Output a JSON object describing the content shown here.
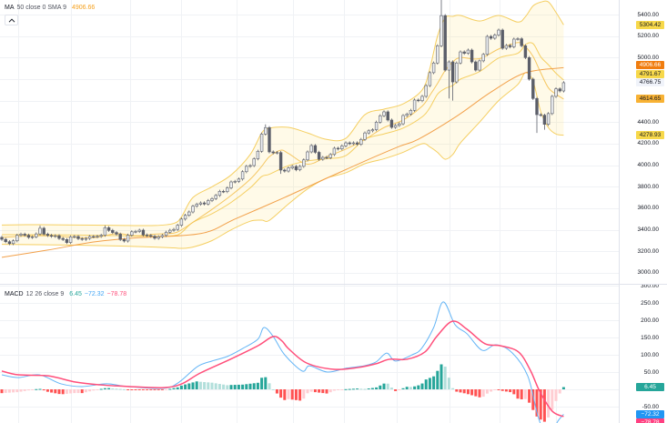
{
  "price_pane": {
    "legend": {
      "name": "MA",
      "params": "50 close 0 SMA 9",
      "value": "4906.66",
      "value_color": "#f5a11f"
    },
    "collapse_button": {
      "icon": "chevron-up-icon"
    }
  },
  "macd_pane": {
    "legend": {
      "name": "MACD",
      "params": "12 26 close 9",
      "values": [
        {
          "text": "6.45",
          "color": "#26a69a"
        },
        {
          "text": "−72.32",
          "color": "#42a5f5"
        },
        {
          "text": "−78.78",
          "color": "#ff4f7b"
        }
      ]
    }
  },
  "price_axis": {
    "tick_labels": [
      {
        "value": 5400,
        "text": "5400.00"
      },
      {
        "value": 5200,
        "text": "5200.00"
      },
      {
        "value": 5000,
        "text": "5000.00"
      },
      {
        "value": 4400,
        "text": "4400.00"
      },
      {
        "value": 4200,
        "text": "4200.00"
      },
      {
        "value": 4000,
        "text": "4000.00"
      },
      {
        "value": 3800,
        "text": "3800.00"
      },
      {
        "value": 3600,
        "text": "3600.00"
      },
      {
        "value": 3400,
        "text": "3400.00"
      },
      {
        "value": 3200,
        "text": "3200.00"
      },
      {
        "value": 3000,
        "text": "3000.00"
      }
    ],
    "value_labels": [
      {
        "value": 5304.42,
        "text": "5304.42",
        "series": "bb-upper",
        "bg": "#f7d84a",
        "fg": "#131722"
      },
      {
        "value": 4906.66,
        "text": "4906.66",
        "series": "ma50",
        "bg": "#f07d10",
        "fg": "#ffffff"
      },
      {
        "value": 4791.67,
        "text": "4791.67",
        "series": "bb-basis",
        "bg": "#f7d84a",
        "fg": "#131722"
      },
      {
        "value": 4766.75,
        "text": "4766.75",
        "series": "last-price",
        "bg": "#f0f3fa",
        "fg": "#131722"
      },
      {
        "value": 4614.65,
        "text": "4614.65",
        "series": "sma9",
        "bg": "#f8b234",
        "fg": "#131722"
      },
      {
        "value": 4278.93,
        "text": "4278.93",
        "series": "bb-lower",
        "bg": "#f7d84a",
        "fg": "#131722"
      }
    ]
  },
  "macd_axis": {
    "tick_labels": [
      {
        "value": 300,
        "text": "300.00"
      },
      {
        "value": 250,
        "text": "250.00"
      },
      {
        "value": 200,
        "text": "200.00"
      },
      {
        "value": 150,
        "text": "150.00"
      },
      {
        "value": 100,
        "text": "100.00"
      },
      {
        "value": 50,
        "text": "50.00"
      },
      {
        "value": -50,
        "text": "-50.00"
      }
    ],
    "value_labels": [
      {
        "value": 6.45,
        "text": "6.45",
        "series": "histogram",
        "bg": "#26a69a",
        "fg": "#ffffff"
      },
      {
        "value": -72.32,
        "text": "−72.32",
        "series": "macd",
        "bg": "#2196f3",
        "fg": "#ffffff"
      },
      {
        "value": -78.78,
        "text": "−78.78",
        "series": "signal",
        "bg": "#ff4081",
        "fg": "#ffffff"
      }
    ]
  },
  "chart_data": {
    "type": "candlestick",
    "title": "",
    "grid": true,
    "panes": [
      "price",
      "macd"
    ],
    "last_price": 4766.75,
    "y_axis_price": {
      "range": [
        2960,
        5535
      ],
      "ticks": [
        5400,
        5200,
        5000,
        4800,
        4600,
        4400,
        4200,
        4000,
        3800,
        3600,
        3400,
        3200,
        3000
      ]
    },
    "y_axis_macd": {
      "ticks": [
        300,
        250,
        200,
        150,
        100,
        50,
        0,
        -50
      ]
    },
    "colors": {
      "up_fill": "#eceef1",
      "down_fill": "#5b5e69",
      "candle_border": "#5d606b",
      "bb_line": "#f5cf62",
      "bb_fill": "rgba(255,226,120,0.17)",
      "sma9": "#f3bd4a",
      "ma50": "#f2a14b",
      "macd_line": "#64b5f6",
      "signal_line": "#ff4f7b",
      "hist_up_strong": "#26a69a",
      "hist_up_weak": "#b2dfdb",
      "hist_down_strong": "#ff5252",
      "hist_down_weak": "#ffcdd2"
    },
    "candles": {
      "count": 148,
      "first_open": 3330,
      "default_wick": 14,
      "close": [
        3312,
        3290,
        3272,
        3298,
        3350,
        3360,
        3350,
        3330,
        3335,
        3362,
        3415,
        3360,
        3348,
        3340,
        3345,
        3320,
        3310,
        3282,
        3335,
        3338,
        3318,
        3312,
        3320,
        3338,
        3336,
        3340,
        3350,
        3420,
        3395,
        3375,
        3360,
        3310,
        3296,
        3350,
        3382,
        3385,
        3397,
        3352,
        3348,
        3340,
        3322,
        3336,
        3348,
        3378,
        3396,
        3404,
        3442,
        3500,
        3535,
        3566,
        3620,
        3638,
        3650,
        3640,
        3672,
        3690,
        3720,
        3758,
        3755,
        3790,
        3845,
        3850,
        3872,
        3940,
        3990,
        3997,
        4060,
        4130,
        4290,
        4350,
        4124,
        4115,
        4118,
        3955,
        3946,
        3975,
        3989,
        3958,
        3990,
        4050,
        4124,
        4183,
        4120,
        4056,
        4073,
        4070,
        4100,
        4158,
        4152,
        4180,
        4208,
        4200,
        4208,
        4195,
        4240,
        4300,
        4320,
        4330,
        4400,
        4460,
        4496,
        4420,
        4352,
        4370,
        4385,
        4462,
        4475,
        4510,
        4606,
        4600,
        4640,
        4740,
        4860,
        4950,
        5110,
        5390,
        4884,
        4960,
        4774,
        4950,
        5053,
        5040,
        5070,
        4960,
        4884,
        4970,
        5030,
        5197,
        5180,
        5210,
        5256,
        5087,
        5113,
        5100,
        5172,
        5175,
        5110,
        5000,
        4800,
        4620,
        4470,
        4465,
        4380,
        4480,
        4640,
        4710,
        4690,
        4766.75
      ],
      "extremes": [
        {
          "index": 10,
          "high": 3440
        },
        {
          "index": 27,
          "high": 3440
        },
        {
          "index": 69,
          "high": 4380
        },
        {
          "index": 73,
          "low": 3920
        },
        {
          "index": 115,
          "high": 5535
        },
        {
          "index": 117,
          "low": 4620
        },
        {
          "index": 118,
          "low": 4600
        },
        {
          "index": 140,
          "low": 4300
        },
        {
          "index": 142,
          "low": 4330
        }
      ]
    },
    "bollinger": {
      "index": [
        0,
        10,
        20,
        30,
        40,
        45,
        47,
        50,
        55,
        60,
        65,
        68,
        70,
        75,
        80,
        85,
        90,
        95,
        100,
        105,
        110,
        112,
        114,
        116,
        118,
        120,
        125,
        130,
        135,
        137,
        139,
        141,
        143,
        145,
        147
      ],
      "upper": [
        3445,
        3448,
        3445,
        3442,
        3440,
        3460,
        3520,
        3700,
        3800,
        3910,
        4100,
        4300,
        4345,
        4352,
        4300,
        4240,
        4250,
        4470,
        4521,
        4570,
        4700,
        4900,
        5200,
        5370,
        5383,
        5392,
        5340,
        5392,
        5330,
        5380,
        5480,
        5515,
        5518,
        5420,
        5304.42
      ],
      "basis": [
        3355,
        3355,
        3351.5,
        3346,
        3340,
        3346,
        3374,
        3470,
        3550,
        3655,
        3790,
        3895,
        3916.5,
        3996,
        4040,
        4060,
        4090,
        4242,
        4290.5,
        4345,
        4450,
        4535,
        4660,
        4713,
        4741.5,
        4800,
        4870,
        4996,
        5040,
        5120,
        5130,
        5007.5,
        4934,
        4855,
        4791.67
      ],
      "lower": [
        3265,
        3262,
        3258,
        3250,
        3240,
        3232,
        3228,
        3240,
        3300,
        3400,
        3480,
        3490,
        3488,
        3640,
        3780,
        3880,
        3930,
        4014,
        4060,
        4120,
        4200,
        4170,
        4120,
        4056,
        4100,
        4208,
        4400,
        4600,
        4750,
        4860,
        4780,
        4500,
        4350,
        4290,
        4278.93
      ]
    },
    "sma9": {
      "index": [
        0,
        10,
        20,
        25,
        30,
        35,
        40,
        45,
        47,
        50,
        55,
        60,
        65,
        68,
        70,
        73,
        75,
        80,
        85,
        90,
        95,
        100,
        105,
        110,
        112,
        114,
        116,
        118,
        120,
        125,
        130,
        135,
        137,
        139,
        141,
        143,
        145,
        147
      ],
      "values": [
        3330,
        3345,
        3330,
        3330,
        3365,
        3345,
        3360,
        3370,
        3400,
        3470,
        3590,
        3720,
        3870,
        3990,
        4080,
        4140,
        4110,
        4010,
        4080,
        4150,
        4240,
        4350,
        4420,
        4550,
        4650,
        4760,
        4880,
        4960,
        5000,
        4990,
        5080,
        5140,
        5100,
        5011,
        4860,
        4720,
        4660,
        4614.65
      ]
    },
    "ma50": {
      "index": [
        0,
        12,
        24,
        35,
        52,
        61,
        74,
        85,
        95,
        104,
        109,
        119,
        128,
        137,
        147
      ],
      "values": [
        3145,
        3212,
        3287,
        3325,
        3365,
        3500,
        3701,
        3880,
        4039,
        4175,
        4242,
        4455,
        4680,
        4859,
        4906.66
      ]
    },
    "macd": {
      "params": "12 26 close 9",
      "macd_line": {
        "index": [
          0,
          4.3,
          9.8,
          15.5,
          21,
          27.4,
          32.9,
          42.4,
          46.4,
          51.2,
          55,
          59,
          63,
          67,
          68.6,
          71,
          74,
          78.6,
          80.5,
          85.2,
          90,
          94.8,
          97.9,
          100.7,
          103,
          107.4,
          109.8,
          113,
          115.5,
          118.6,
          121.7,
          125.7,
          129.3,
          133.6,
          137.6,
          140,
          141.7,
          143.6,
          145.5,
          147
        ],
        "values": [
          42,
          34,
          42,
          16,
          8,
          16,
          8,
          3,
          21,
          66,
          82,
          95,
          118,
          145,
          179,
          153,
          100,
          53,
          68,
          50,
          61,
          68,
          79,
          105,
          82,
          100,
          118,
          179,
          253,
          187,
          161,
          113,
          129,
          105,
          39,
          -66,
          -120,
          -130,
          -92,
          -72.32
        ]
      },
      "signal_line": {
        "index": [
          0,
          4.3,
          12.1,
          19.3,
          25.7,
          33.6,
          42.4,
          47.1,
          51.9,
          59.8,
          67,
          71,
          73.3,
          75,
          79.8,
          86.9,
          93.1,
          97.9,
          101.4,
          106,
          110.7,
          113.8,
          117.9,
          121.7,
          126.4,
          130.5,
          135.2,
          138.3,
          140.7,
          144,
          147
        ],
        "values": [
          53,
          42,
          39,
          21,
          13,
          8,
          5,
          16,
          47,
          87,
          126,
          153,
          140,
          118,
          76,
          58,
          63,
          74,
          87,
          87,
          108,
          153,
          197,
          174,
          132,
          126,
          108,
          55,
          -5,
          -63,
          -78.78
        ]
      },
      "histogram_last": 6.45,
      "macd_last": -72.32,
      "signal_last": -78.78
    }
  }
}
